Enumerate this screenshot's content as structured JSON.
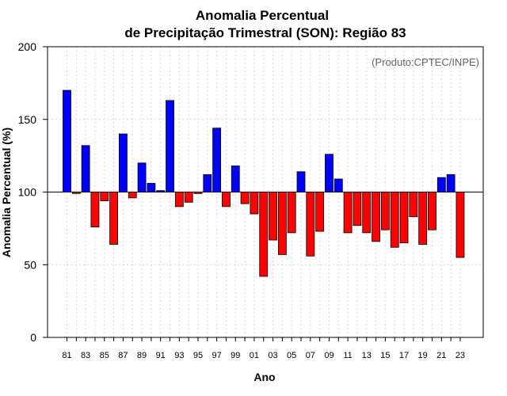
{
  "chart_data": {
    "type": "bar",
    "title": "Anomalia Percentual",
    "subtitle": "de Precipitação Trimestral (SON): Região 83",
    "annotation": "(Produto:CPTEC/INPE)",
    "xlabel": "Ano",
    "ylabel": "Anomalia Percentual (%)",
    "ylim": [
      0,
      200
    ],
    "yticks": [
      0,
      50,
      100,
      150,
      200
    ],
    "baseline": 100,
    "grid": true,
    "x_tick_labels": [
      "81",
      "83",
      "85",
      "87",
      "89",
      "91",
      "93",
      "95",
      "97",
      "99",
      "01",
      "03",
      "05",
      "07",
      "09",
      "11",
      "13",
      "15",
      "17",
      "19",
      "21",
      "23"
    ],
    "categories": [
      "1981",
      "1982",
      "1983",
      "1984",
      "1985",
      "1986",
      "1987",
      "1988",
      "1989",
      "1990",
      "1991",
      "1992",
      "1993",
      "1994",
      "1995",
      "1996",
      "1997",
      "1998",
      "1999",
      "2000",
      "2001",
      "2002",
      "2003",
      "2004",
      "2005",
      "2006",
      "2007",
      "2008",
      "2009",
      "2010",
      "2011",
      "2012",
      "2013",
      "2014",
      "2015",
      "2016",
      "2017",
      "2018",
      "2019",
      "2020",
      "2021",
      "2022",
      "2023"
    ],
    "values": [
      170,
      99,
      132,
      76,
      94,
      64,
      140,
      96,
      120,
      106,
      101,
      163,
      90,
      93,
      99,
      112,
      144,
      90,
      118,
      92,
      85,
      42,
      67,
      57,
      72,
      114,
      56,
      73,
      126,
      109,
      72,
      77,
      72,
      66,
      74,
      62,
      65,
      83,
      64,
      74,
      110,
      112,
      55
    ],
    "colors": {
      "above": "#0000ff",
      "below": "#ff0000",
      "edge": "#000000",
      "grid": "#d9d9d9"
    }
  }
}
